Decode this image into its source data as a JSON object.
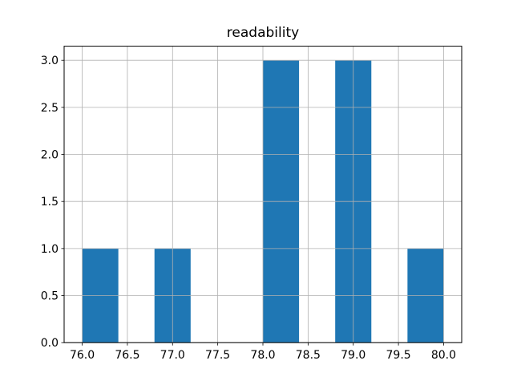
{
  "figure": {
    "background_color": "#ffffff",
    "title": "readability"
  },
  "chart_data": {
    "type": "bar",
    "subtype": "histogram",
    "title": "readability",
    "xlabel": "",
    "ylabel": "",
    "xlim": [
      75.8,
      80.2
    ],
    "ylim": [
      0,
      3.15
    ],
    "x_ticks": [
      76.0,
      76.5,
      77.0,
      77.5,
      78.0,
      78.5,
      79.0,
      79.5,
      80.0
    ],
    "y_ticks": [
      0.0,
      0.5,
      1.0,
      1.5,
      2.0,
      2.5,
      3.0
    ],
    "x_tick_labels": [
      "76.0",
      "76.5",
      "77.0",
      "77.5",
      "78.0",
      "78.5",
      "79.0",
      "79.5",
      "80.0"
    ],
    "y_tick_labels": [
      "0.0",
      "0.5",
      "1.0",
      "1.5",
      "2.0",
      "2.5",
      "3.0"
    ],
    "bins": {
      "start": 76.0,
      "end": 80.0,
      "bin_width": 0.4,
      "counts": [
        1,
        0,
        1,
        0,
        0,
        3,
        0,
        3,
        0,
        1
      ]
    },
    "bars": [
      {
        "x0": 76.0,
        "x1": 76.4,
        "height": 1
      },
      {
        "x0": 76.8,
        "x1": 77.2,
        "height": 1
      },
      {
        "x0": 78.0,
        "x1": 78.4,
        "height": 3
      },
      {
        "x0": 78.8,
        "x1": 79.2,
        "height": 3
      },
      {
        "x0": 79.6,
        "x1": 80.0,
        "height": 1
      }
    ],
    "grid": true,
    "grid_above_bars": true,
    "legend": "none",
    "bar_color": "#1f77b4",
    "grid_color": "#b0b0b0",
    "spine_color": "#000000",
    "tick_color": "#000000",
    "tick_label_color": "#000000"
  }
}
